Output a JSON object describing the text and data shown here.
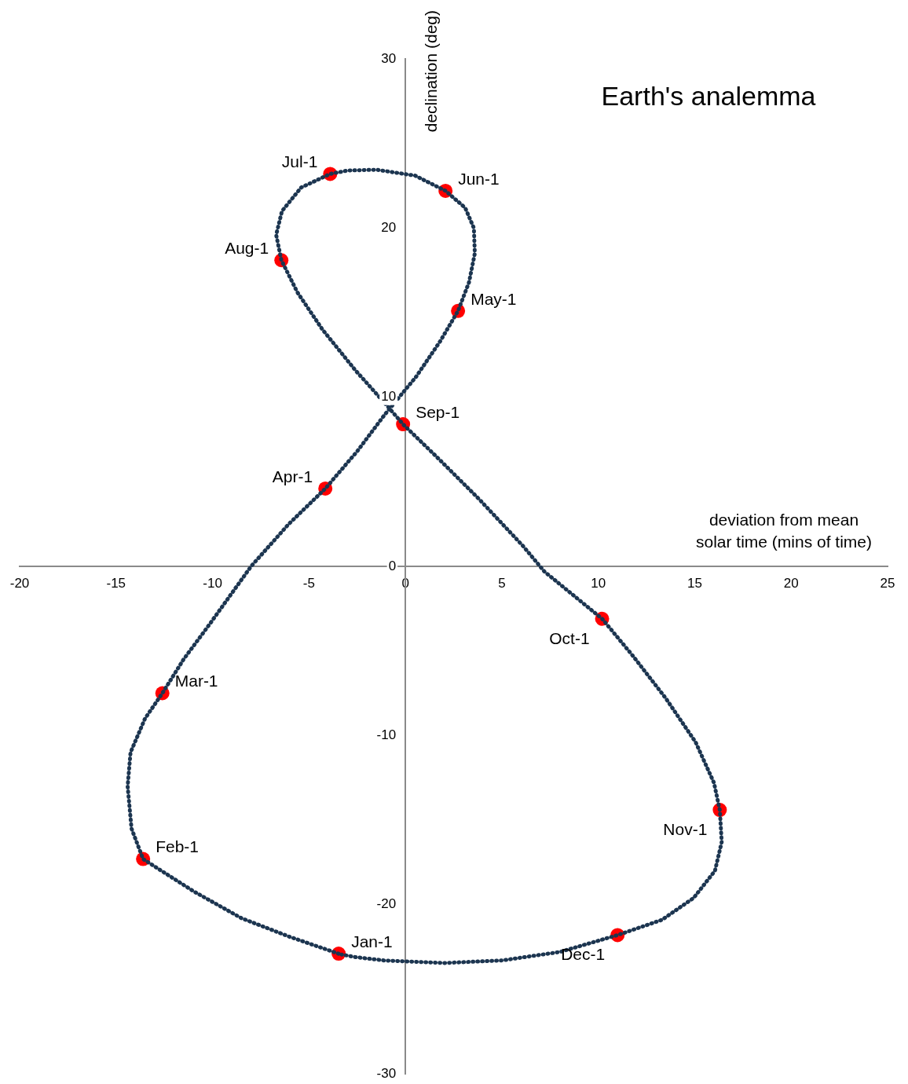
{
  "chart_data": {
    "type": "scatter",
    "title": "Earth's analemma",
    "xlabel": "deviation from mean solar time (mins of time)",
    "ylabel": "declination (deg)",
    "xlim": [
      -20,
      25
    ],
    "xticks": [
      -20,
      -15,
      -10,
      -5,
      0,
      5,
      10,
      15,
      20,
      25
    ],
    "ylim": [
      -30,
      30
    ],
    "yticks": [
      -30,
      -20,
      -10,
      0,
      10,
      20,
      30
    ],
    "series": [
      {
        "type": "line",
        "color": "#1c3550",
        "line_style": "dotted",
        "x": [
          -3.46,
          -6,
          -8.5,
          -11,
          -13.6,
          -14.2,
          -14.4,
          -14.25,
          -13.5,
          -12.6,
          -11.5,
          -10.2,
          -8,
          -6.05,
          -4.15,
          -2.5,
          -1.05,
          0.55,
          1.8,
          2.73,
          3.3,
          3.6,
          3.55,
          3.1,
          2.08,
          0.5,
          -1.5,
          -3,
          -3.9,
          -5.4,
          -6.4,
          -6.7,
          -6.43,
          -5.6,
          -4.3,
          -2.6,
          -0.95,
          -0.12,
          1.6,
          3.8,
          6.1,
          7.2,
          8.7,
          10.2,
          11.8,
          13.5,
          15.05,
          16,
          16.3,
          16.4,
          16.05,
          14.95,
          13.3,
          11,
          8,
          5,
          2,
          -1.1,
          -2.6,
          -3.3
        ],
        "values": [
          -22.9,
          -21.9,
          -20.8,
          -19.2,
          -17.3,
          -15.5,
          -13,
          -11,
          -9,
          -7.5,
          -5.5,
          -3.5,
          0,
          2.5,
          4.6,
          6.8,
          9,
          11.2,
          13.3,
          15.1,
          16.8,
          18.5,
          20,
          21.2,
          22.2,
          23.1,
          23.45,
          23.4,
          23.2,
          22.4,
          21,
          19.6,
          18.1,
          16.2,
          14,
          11.6,
          9.5,
          8.4,
          6.5,
          4,
          1.2,
          -0.3,
          -1.7,
          -3.1,
          -5.3,
          -7.8,
          -10.4,
          -12.8,
          -14.4,
          -16.3,
          -18,
          -19.6,
          -20.9,
          -21.8,
          -22.8,
          -23.3,
          -23.45,
          -23.3,
          -23.1,
          -22.95
        ]
      },
      {
        "color": "#ff0000",
        "marker": "circle",
        "x": [
          -3.46,
          -13.6,
          -12.6,
          -4.15,
          2.73,
          2.08,
          -3.9,
          -6.43,
          -0.12,
          10.2,
          16.3,
          11.0
        ],
        "values": [
          -22.9,
          -17.3,
          -7.5,
          4.6,
          15.1,
          22.2,
          23.2,
          18.1,
          8.4,
          -3.1,
          -14.4,
          -21.8
        ]
      }
    ],
    "annotations": [
      {
        "text": "Jan-1",
        "x": -3.46,
        "y": -22.9
      },
      {
        "text": "Feb-1",
        "x": -13.6,
        "y": -17.3
      },
      {
        "text": "Mar-1",
        "x": -12.6,
        "y": -7.5
      },
      {
        "text": "Apr-1",
        "x": -4.15,
        "y": 4.6
      },
      {
        "text": "May-1",
        "x": 2.73,
        "y": 15.1
      },
      {
        "text": "Jun-1",
        "x": 2.08,
        "y": 22.2
      },
      {
        "text": "Jul-1",
        "x": -3.9,
        "y": 23.2
      },
      {
        "text": "Aug-1",
        "x": -6.43,
        "y": 18.1
      },
      {
        "text": "Sep-1",
        "x": -0.12,
        "y": 8.4
      },
      {
        "text": "Oct-1",
        "x": 10.2,
        "y": -3.1
      },
      {
        "text": "Nov-1",
        "x": 16.3,
        "y": -14.4
      },
      {
        "text": "Dec-1",
        "x": 11.0,
        "y": -21.8
      }
    ]
  }
}
